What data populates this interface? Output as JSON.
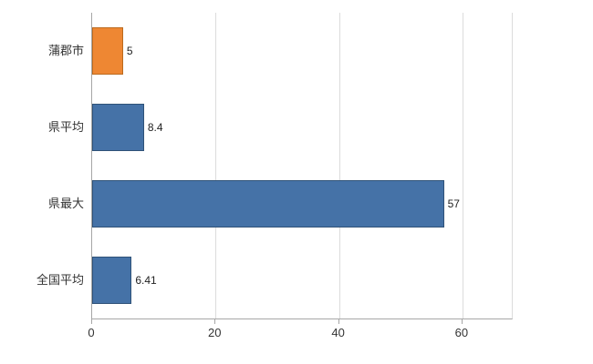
{
  "chart_data": {
    "type": "bar",
    "orientation": "horizontal",
    "title": "",
    "xlabel": "",
    "ylabel": "",
    "categories": [
      "蒲郡市",
      "県平均",
      "県最大",
      "全国平均"
    ],
    "values": [
      5,
      8.4,
      57,
      6.41
    ],
    "value_labels": [
      "5",
      "8.4",
      "57",
      "6.41"
    ],
    "bar_colors": [
      "#ee8733",
      "#4572a7",
      "#4572a7",
      "#4572a7"
    ],
    "bar_border_colors": [
      "#bb6a1e",
      "#2f5278",
      "#2f5278",
      "#2f5278"
    ],
    "x_ticks": [
      0,
      20,
      40,
      60
    ],
    "x_tick_labels": [
      "0",
      "20",
      "40",
      "60"
    ],
    "xlim": [
      0,
      68
    ],
    "grid": "vertical-gridlines-on",
    "legend": "none",
    "background_color": "#ffffff",
    "gridline_color": "#dcdcdc",
    "axis_color": "#a6a6a6",
    "text_color": "#333333"
  }
}
